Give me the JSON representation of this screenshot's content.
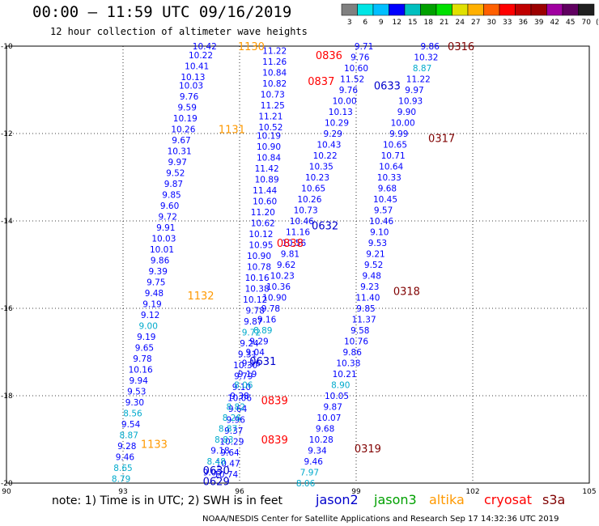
{
  "title": "00:00 – 11:59 UTC 09/16/2019",
  "subtitle": "12 hour collection of altimeter wave heights",
  "legend": {
    "unit": "(ft)",
    "colors": [
      "#808080",
      "#00e5e5",
      "#00bfff",
      "#0000ff",
      "#00bfbf",
      "#00a000",
      "#00e000",
      "#e0e000",
      "#ffb000",
      "#ff6000",
      "#ff0000",
      "#c00000",
      "#9b0000",
      "#a000a0",
      "#600060",
      "#202020"
    ],
    "ticks": [
      "3",
      "6",
      "9",
      "12",
      "15",
      "18",
      "21",
      "24",
      "27",
      "30",
      "33",
      "36",
      "39",
      "42",
      "45",
      "70"
    ]
  },
  "axes": {
    "lat_labels": [
      "-10",
      "-12",
      "-14",
      "-16",
      "-18",
      "-20"
    ],
    "lon_labels": [
      "90",
      "93",
      "96",
      "99",
      "102",
      "105"
    ],
    "lat_range": [
      -20,
      -10
    ],
    "lon_range": [
      90,
      105
    ]
  },
  "tracks": [
    {
      "time": "1130",
      "sat": "altika",
      "lon": 96.3,
      "lat": -10.0
    },
    {
      "time": "1131",
      "sat": "altika",
      "lon": 95.8,
      "lat": -11.9
    },
    {
      "time": "1132",
      "sat": "altika",
      "lon": 95.0,
      "lat": -15.7
    },
    {
      "time": "1133",
      "sat": "altika",
      "lon": 93.8,
      "lat": -19.1
    },
    {
      "time": "0836",
      "sat": "cryosat",
      "lon": 98.3,
      "lat": -10.2
    },
    {
      "time": "0837",
      "sat": "cryosat",
      "lon": 98.1,
      "lat": -10.8
    },
    {
      "time": "0838",
      "sat": "cryosat",
      "lon": 97.3,
      "lat": -14.5
    },
    {
      "time": "0839",
      "sat": "cryosat",
      "lon": 96.9,
      "lat": -18.1
    },
    {
      "time": "0839",
      "sat": "cryosat",
      "lon": 96.9,
      "lat": -19.0
    },
    {
      "time": "0316",
      "sat": "s3a",
      "lon": 101.7,
      "lat": -10.0
    },
    {
      "time": "0317",
      "sat": "s3a",
      "lon": 101.2,
      "lat": -12.1
    },
    {
      "time": "0318",
      "sat": "s3a",
      "lon": 100.3,
      "lat": -15.6
    },
    {
      "time": "0319",
      "sat": "s3a",
      "lon": 99.3,
      "lat": -19.2
    },
    {
      "time": "0633",
      "sat": "jason2",
      "lon": 99.8,
      "lat": -10.9
    },
    {
      "time": "0632",
      "sat": "jason2",
      "lon": 98.2,
      "lat": -14.1
    },
    {
      "time": "0631",
      "sat": "jason2",
      "lon": 96.6,
      "lat": -17.2
    },
    {
      "time": "0630",
      "sat": "jason2",
      "lon": 95.4,
      "lat": -19.7
    },
    {
      "time": "0629",
      "sat": "jason2",
      "lon": 95.4,
      "lat": -19.95
    }
  ],
  "wave_heights": [
    {
      "v": "10.42",
      "lon": 95.1,
      "lat": -10.0,
      "c": "#0000ff"
    },
    {
      "v": "10.22",
      "lon": 95.0,
      "lat": -10.2,
      "c": "#0000ff"
    },
    {
      "v": "10.41",
      "lon": 94.9,
      "lat": -10.45,
      "c": "#0000ff"
    },
    {
      "v": "10.13",
      "lon": 94.8,
      "lat": -10.7,
      "c": "#0000ff"
    },
    {
      "v": "10.03",
      "lon": 94.75,
      "lat": -10.9,
      "c": "#0000ff"
    },
    {
      "v": "9.76",
      "lon": 94.7,
      "lat": -11.15,
      "c": "#0000ff"
    },
    {
      "v": "9.59",
      "lon": 94.65,
      "lat": -11.4,
      "c": "#0000ff"
    },
    {
      "v": "10.19",
      "lon": 94.6,
      "lat": -11.65,
      "c": "#0000ff"
    },
    {
      "v": "10.26",
      "lon": 94.55,
      "lat": -11.9,
      "c": "#0000ff"
    },
    {
      "v": "9.67",
      "lon": 94.5,
      "lat": -12.15,
      "c": "#0000ff"
    },
    {
      "v": "10.31",
      "lon": 94.45,
      "lat": -12.4,
      "c": "#0000ff"
    },
    {
      "v": "9.97",
      "lon": 94.4,
      "lat": -12.65,
      "c": "#0000ff"
    },
    {
      "v": "9.52",
      "lon": 94.35,
      "lat": -12.9,
      "c": "#0000ff"
    },
    {
      "v": "9.87",
      "lon": 94.3,
      "lat": -13.15,
      "c": "#0000ff"
    },
    {
      "v": "9.85",
      "lon": 94.25,
      "lat": -13.4,
      "c": "#0000ff"
    },
    {
      "v": "9.60",
      "lon": 94.2,
      "lat": -13.65,
      "c": "#0000ff"
    },
    {
      "v": "9.72",
      "lon": 94.15,
      "lat": -13.9,
      "c": "#0000ff"
    },
    {
      "v": "9.91",
      "lon": 94.1,
      "lat": -14.15,
      "c": "#0000ff"
    },
    {
      "v": "10.03",
      "lon": 94.05,
      "lat": -14.4,
      "c": "#0000ff"
    },
    {
      "v": "10.01",
      "lon": 94.0,
      "lat": -14.65,
      "c": "#0000ff"
    },
    {
      "v": "9.86",
      "lon": 93.95,
      "lat": -14.9,
      "c": "#0000ff"
    },
    {
      "v": "9.39",
      "lon": 93.9,
      "lat": -15.15,
      "c": "#0000ff"
    },
    {
      "v": "9.75",
      "lon": 93.85,
      "lat": -15.4,
      "c": "#0000ff"
    },
    {
      "v": "9.48",
      "lon": 93.8,
      "lat": -15.65,
      "c": "#0000ff"
    },
    {
      "v": "9.19",
      "lon": 93.75,
      "lat": -15.9,
      "c": "#0000ff"
    },
    {
      "v": "9.12",
      "lon": 93.7,
      "lat": -16.15,
      "c": "#0000ff"
    },
    {
      "v": "9.00",
      "lon": 93.65,
      "lat": -16.4,
      "c": "#00aacc"
    },
    {
      "v": "9.19",
      "lon": 93.6,
      "lat": -16.65,
      "c": "#0000ff"
    },
    {
      "v": "9.65",
      "lon": 93.55,
      "lat": -16.9,
      "c": "#0000ff"
    },
    {
      "v": "9.78",
      "lon": 93.5,
      "lat": -17.15,
      "c": "#0000ff"
    },
    {
      "v": "10.16",
      "lon": 93.45,
      "lat": -17.4,
      "c": "#0000ff"
    },
    {
      "v": "9.94",
      "lon": 93.4,
      "lat": -17.65,
      "c": "#0000ff"
    },
    {
      "v": "9.53",
      "lon": 93.35,
      "lat": -17.9,
      "c": "#0000ff"
    },
    {
      "v": "9.30",
      "lon": 93.3,
      "lat": -18.15,
      "c": "#0000ff"
    },
    {
      "v": "8.56",
      "lon": 93.25,
      "lat": -18.4,
      "c": "#00aacc"
    },
    {
      "v": "9.54",
      "lon": 93.2,
      "lat": -18.65,
      "c": "#0000ff"
    },
    {
      "v": "8.87",
      "lon": 93.15,
      "lat": -18.9,
      "c": "#00aacc"
    },
    {
      "v": "9.28",
      "lon": 93.1,
      "lat": -19.15,
      "c": "#0000ff"
    },
    {
      "v": "9.46",
      "lon": 93.05,
      "lat": -19.4,
      "c": "#0000ff"
    },
    {
      "v": "8.65",
      "lon": 93.0,
      "lat": -19.65,
      "c": "#00aacc"
    },
    {
      "v": "8.79",
      "lon": 92.95,
      "lat": -19.9,
      "c": "#00aacc"
    },
    {
      "v": "11.22",
      "lon": 96.9,
      "lat": -10.1,
      "c": "#0000ff"
    },
    {
      "v": "11.26",
      "lon": 96.9,
      "lat": -10.35,
      "c": "#0000ff"
    },
    {
      "v": "10.84",
      "lon": 96.9,
      "lat": -10.6,
      "c": "#0000ff"
    },
    {
      "v": "10.82",
      "lon": 96.9,
      "lat": -10.85,
      "c": "#0000ff"
    },
    {
      "v": "10.73",
      "lon": 96.85,
      "lat": -11.1,
      "c": "#0000ff"
    },
    {
      "v": "11.25",
      "lon": 96.85,
      "lat": -11.35,
      "c": "#0000ff"
    },
    {
      "v": "11.21",
      "lon": 96.8,
      "lat": -11.6,
      "c": "#0000ff"
    },
    {
      "v": "10.52",
      "lon": 96.8,
      "lat": -11.85,
      "c": "#0000ff"
    },
    {
      "v": "10.19",
      "lon": 96.75,
      "lat": -12.05,
      "c": "#0000ff"
    },
    {
      "v": "10.90",
      "lon": 96.75,
      "lat": -12.3,
      "c": "#0000ff"
    },
    {
      "v": "10.84",
      "lon": 96.75,
      "lat": -12.55,
      "c": "#0000ff"
    },
    {
      "v": "11.42",
      "lon": 96.7,
      "lat": -12.8,
      "c": "#0000ff"
    },
    {
      "v": "10.89",
      "lon": 96.7,
      "lat": -13.05,
      "c": "#0000ff"
    },
    {
      "v": "11.44",
      "lon": 96.65,
      "lat": -13.3,
      "c": "#0000ff"
    },
    {
      "v": "10.60",
      "lon": 96.65,
      "lat": -13.55,
      "c": "#0000ff"
    },
    {
      "v": "11.20",
      "lon": 96.6,
      "lat": -13.8,
      "c": "#0000ff"
    },
    {
      "v": "10.62",
      "lon": 96.6,
      "lat": -14.05,
      "c": "#0000ff"
    },
    {
      "v": "10.12",
      "lon": 96.55,
      "lat": -14.3,
      "c": "#0000ff"
    },
    {
      "v": "10.95",
      "lon": 96.55,
      "lat": -14.55,
      "c": "#0000ff"
    },
    {
      "v": "10.90",
      "lon": 96.5,
      "lat": -14.8,
      "c": "#0000ff"
    },
    {
      "v": "10.78",
      "lon": 96.5,
      "lat": -15.05,
      "c": "#0000ff"
    },
    {
      "v": "10.16",
      "lon": 96.45,
      "lat": -15.3,
      "c": "#0000ff"
    },
    {
      "v": "10.38",
      "lon": 96.45,
      "lat": -15.55,
      "c": "#0000ff"
    },
    {
      "v": "10.12",
      "lon": 96.4,
      "lat": -15.8,
      "c": "#0000ff"
    },
    {
      "v": "9.78",
      "lon": 96.4,
      "lat": -16.05,
      "c": "#0000ff"
    },
    {
      "v": "9.87",
      "lon": 96.35,
      "lat": -16.3,
      "c": "#0000ff"
    },
    {
      "v": "9.72",
      "lon": 96.3,
      "lat": -16.55,
      "c": "#00aacc"
    },
    {
      "v": "9.24",
      "lon": 96.25,
      "lat": -16.8,
      "c": "#0000ff"
    },
    {
      "v": "9.31",
      "lon": 96.2,
      "lat": -17.05,
      "c": "#0000ff"
    },
    {
      "v": "10.30",
      "lon": 96.15,
      "lat": -17.3,
      "c": "#0000ff"
    },
    {
      "v": "9.79",
      "lon": 96.1,
      "lat": -17.55,
      "c": "#0000ff"
    },
    {
      "v": "9.10",
      "lon": 96.05,
      "lat": -17.8,
      "c": "#0000ff"
    },
    {
      "v": "10.06",
      "lon": 96.0,
      "lat": -18.05,
      "c": "#0000ff"
    },
    {
      "v": "9.64",
      "lon": 95.95,
      "lat": -18.3,
      "c": "#0000ff"
    },
    {
      "v": "9.96",
      "lon": 95.9,
      "lat": -18.55,
      "c": "#0000ff"
    },
    {
      "v": "9.37",
      "lon": 95.85,
      "lat": -18.8,
      "c": "#0000ff"
    },
    {
      "v": "10.29",
      "lon": 95.8,
      "lat": -19.05,
      "c": "#0000ff"
    },
    {
      "v": "9.64",
      "lon": 95.75,
      "lat": -19.3,
      "c": "#0000ff"
    },
    {
      "v": "10.47",
      "lon": 95.7,
      "lat": -19.55,
      "c": "#0000ff"
    },
    {
      "v": "10.74",
      "lon": 95.65,
      "lat": -19.8,
      "c": "#0000ff"
    },
    {
      "v": "9.71",
      "lon": 99.2,
      "lat": -10.0,
      "c": "#0000ff"
    },
    {
      "v": "9.76",
      "lon": 99.1,
      "lat": -10.25,
      "c": "#0000ff"
    },
    {
      "v": "10.60",
      "lon": 99.0,
      "lat": -10.5,
      "c": "#0000ff"
    },
    {
      "v": "11.52",
      "lon": 98.9,
      "lat": -10.75,
      "c": "#0000ff"
    },
    {
      "v": "9.76",
      "lon": 98.8,
      "lat": -11.0,
      "c": "#0000ff"
    },
    {
      "v": "10.00",
      "lon": 98.7,
      "lat": -11.25,
      "c": "#0000ff"
    },
    {
      "v": "10.13",
      "lon": 98.6,
      "lat": -11.5,
      "c": "#0000ff"
    },
    {
      "v": "10.29",
      "lon": 98.5,
      "lat": -11.75,
      "c": "#0000ff"
    },
    {
      "v": "9.29",
      "lon": 98.4,
      "lat": -12.0,
      "c": "#0000ff"
    },
    {
      "v": "10.43",
      "lon": 98.3,
      "lat": -12.25,
      "c": "#0000ff"
    },
    {
      "v": "10.22",
      "lon": 98.2,
      "lat": -12.5,
      "c": "#0000ff"
    },
    {
      "v": "10.35",
      "lon": 98.1,
      "lat": -12.75,
      "c": "#0000ff"
    },
    {
      "v": "10.23",
      "lon": 98.0,
      "lat": -13.0,
      "c": "#0000ff"
    },
    {
      "v": "10.65",
      "lon": 97.9,
      "lat": -13.25,
      "c": "#0000ff"
    },
    {
      "v": "10.26",
      "lon": 97.8,
      "lat": -13.5,
      "c": "#0000ff"
    },
    {
      "v": "10.73",
      "lon": 97.7,
      "lat": -13.75,
      "c": "#0000ff"
    },
    {
      "v": "10.46",
      "lon": 97.6,
      "lat": -14.0,
      "c": "#0000ff"
    },
    {
      "v": "11.16",
      "lon": 97.5,
      "lat": -14.25,
      "c": "#0000ff"
    },
    {
      "v": "10.56",
      "lon": 97.4,
      "lat": -14.5,
      "c": "#0000ff"
    },
    {
      "v": "9.81",
      "lon": 97.3,
      "lat": -14.75,
      "c": "#0000ff"
    },
    {
      "v": "9.62",
      "lon": 97.2,
      "lat": -15.0,
      "c": "#0000ff"
    },
    {
      "v": "10.23",
      "lon": 97.1,
      "lat": -15.25,
      "c": "#0000ff"
    },
    {
      "v": "10.36",
      "lon": 97.0,
      "lat": -15.5,
      "c": "#0000ff"
    },
    {
      "v": "10.90",
      "lon": 96.9,
      "lat": -15.75,
      "c": "#0000ff"
    },
    {
      "v": "9.78",
      "lon": 96.8,
      "lat": -16.0,
      "c": "#0000ff"
    },
    {
      "v": "9.16",
      "lon": 96.7,
      "lat": -16.25,
      "c": "#0000ff"
    },
    {
      "v": "8.89",
      "lon": 96.6,
      "lat": -16.5,
      "c": "#00aacc"
    },
    {
      "v": "9.29",
      "lon": 96.5,
      "lat": -16.75,
      "c": "#0000ff"
    },
    {
      "v": "9.04",
      "lon": 96.4,
      "lat": -17.0,
      "c": "#0000ff"
    },
    {
      "v": "9.16",
      "lon": 96.3,
      "lat": -17.25,
      "c": "#0000ff"
    },
    {
      "v": "9.19",
      "lon": 96.2,
      "lat": -17.5,
      "c": "#0000ff"
    },
    {
      "v": "8.06",
      "lon": 96.1,
      "lat": -17.75,
      "c": "#00aacc"
    },
    {
      "v": "9.38",
      "lon": 96.0,
      "lat": -18.0,
      "c": "#0000ff"
    },
    {
      "v": "8.82",
      "lon": 95.9,
      "lat": -18.25,
      "c": "#00aacc"
    },
    {
      "v": "8.26",
      "lon": 95.8,
      "lat": -18.5,
      "c": "#00aacc"
    },
    {
      "v": "8.87",
      "lon": 95.7,
      "lat": -18.75,
      "c": "#00aacc"
    },
    {
      "v": "8.83",
      "lon": 95.6,
      "lat": -19.0,
      "c": "#00aacc"
    },
    {
      "v": "9.18",
      "lon": 95.5,
      "lat": -19.25,
      "c": "#0000ff"
    },
    {
      "v": "8.48",
      "lon": 95.4,
      "lat": -19.5,
      "c": "#00aacc"
    },
    {
      "v": "9.05",
      "lon": 95.3,
      "lat": -19.75,
      "c": "#0000ff"
    },
    {
      "v": "9.86",
      "lon": 100.9,
      "lat": -10.0,
      "c": "#0000ff"
    },
    {
      "v": "10.32",
      "lon": 100.8,
      "lat": -10.25,
      "c": "#0000ff"
    },
    {
      "v": "8.87",
      "lon": 100.7,
      "lat": -10.5,
      "c": "#00aacc"
    },
    {
      "v": "11.22",
      "lon": 100.6,
      "lat": -10.75,
      "c": "#0000ff"
    },
    {
      "v": "9.97",
      "lon": 100.5,
      "lat": -11.0,
      "c": "#0000ff"
    },
    {
      "v": "10.93",
      "lon": 100.4,
      "lat": -11.25,
      "c": "#0000ff"
    },
    {
      "v": "9.90",
      "lon": 100.3,
      "lat": -11.5,
      "c": "#0000ff"
    },
    {
      "v": "10.00",
      "lon": 100.2,
      "lat": -11.75,
      "c": "#0000ff"
    },
    {
      "v": "9.99",
      "lon": 100.1,
      "lat": -12.0,
      "c": "#0000ff"
    },
    {
      "v": "10.65",
      "lon": 100.0,
      "lat": -12.25,
      "c": "#0000ff"
    },
    {
      "v": "10.71",
      "lon": 99.95,
      "lat": -12.5,
      "c": "#0000ff"
    },
    {
      "v": "10.64",
      "lon": 99.9,
      "lat": -12.75,
      "c": "#0000ff"
    },
    {
      "v": "10.33",
      "lon": 99.85,
      "lat": -13.0,
      "c": "#0000ff"
    },
    {
      "v": "9.68",
      "lon": 99.8,
      "lat": -13.25,
      "c": "#0000ff"
    },
    {
      "v": "10.45",
      "lon": 99.75,
      "lat": -13.5,
      "c": "#0000ff"
    },
    {
      "v": "9.57",
      "lon": 99.7,
      "lat": -13.75,
      "c": "#0000ff"
    },
    {
      "v": "10.46",
      "lon": 99.65,
      "lat": -14.0,
      "c": "#0000ff"
    },
    {
      "v": "9.10",
      "lon": 99.6,
      "lat": -14.25,
      "c": "#0000ff"
    },
    {
      "v": "9.53",
      "lon": 99.55,
      "lat": -14.5,
      "c": "#0000ff"
    },
    {
      "v": "9.21",
      "lon": 99.5,
      "lat": -14.75,
      "c": "#0000ff"
    },
    {
      "v": "9.52",
      "lon": 99.45,
      "lat": -15.0,
      "c": "#0000ff"
    },
    {
      "v": "9.48",
      "lon": 99.4,
      "lat": -15.25,
      "c": "#0000ff"
    },
    {
      "v": "9.23",
      "lon": 99.35,
      "lat": -15.5,
      "c": "#0000ff"
    },
    {
      "v": "11.40",
      "lon": 99.3,
      "lat": -15.75,
      "c": "#0000ff"
    },
    {
      "v": "9.85",
      "lon": 99.25,
      "lat": -16.0,
      "c": "#0000ff"
    },
    {
      "v": "11.37",
      "lon": 99.2,
      "lat": -16.25,
      "c": "#0000ff"
    },
    {
      "v": "9.58",
      "lon": 99.1,
      "lat": -16.5,
      "c": "#0000ff"
    },
    {
      "v": "10.76",
      "lon": 99.0,
      "lat": -16.75,
      "c": "#0000ff"
    },
    {
      "v": "9.86",
      "lon": 98.9,
      "lat": -17.0,
      "c": "#0000ff"
    },
    {
      "v": "10.38",
      "lon": 98.8,
      "lat": -17.25,
      "c": "#0000ff"
    },
    {
      "v": "10.21",
      "lon": 98.7,
      "lat": -17.5,
      "c": "#0000ff"
    },
    {
      "v": "8.90",
      "lon": 98.6,
      "lat": -17.75,
      "c": "#00aacc"
    },
    {
      "v": "10.05",
      "lon": 98.5,
      "lat": -18.0,
      "c": "#0000ff"
    },
    {
      "v": "9.87",
      "lon": 98.4,
      "lat": -18.25,
      "c": "#0000ff"
    },
    {
      "v": "10.07",
      "lon": 98.3,
      "lat": -18.5,
      "c": "#0000ff"
    },
    {
      "v": "9.68",
      "lon": 98.2,
      "lat": -18.75,
      "c": "#0000ff"
    },
    {
      "v": "10.28",
      "lon": 98.1,
      "lat": -19.0,
      "c": "#0000ff"
    },
    {
      "v": "9.34",
      "lon": 98.0,
      "lat": -19.25,
      "c": "#0000ff"
    },
    {
      "v": "9.46",
      "lon": 97.9,
      "lat": -19.5,
      "c": "#0000ff"
    },
    {
      "v": "7.97",
      "lon": 97.8,
      "lat": -19.75,
      "c": "#00aacc"
    },
    {
      "v": "8.06",
      "lon": 97.7,
      "lat": -20.0,
      "c": "#00aacc"
    }
  ],
  "note": "note:  1) Time is in UTC;  2) SWH is in feet",
  "satellites": [
    {
      "name": "jason2",
      "color": "#0000cc"
    },
    {
      "name": "jason3",
      "color": "#00a000"
    },
    {
      "name": "altika",
      "color": "#ff9900"
    },
    {
      "name": "cryosat",
      "color": "#ff0000"
    },
    {
      "name": "s3a",
      "color": "#800000"
    }
  ],
  "credit": "NOAA/NESDIS Center for Satellite Applications and Research    Sep 17 14:32:36 UTC 2019"
}
